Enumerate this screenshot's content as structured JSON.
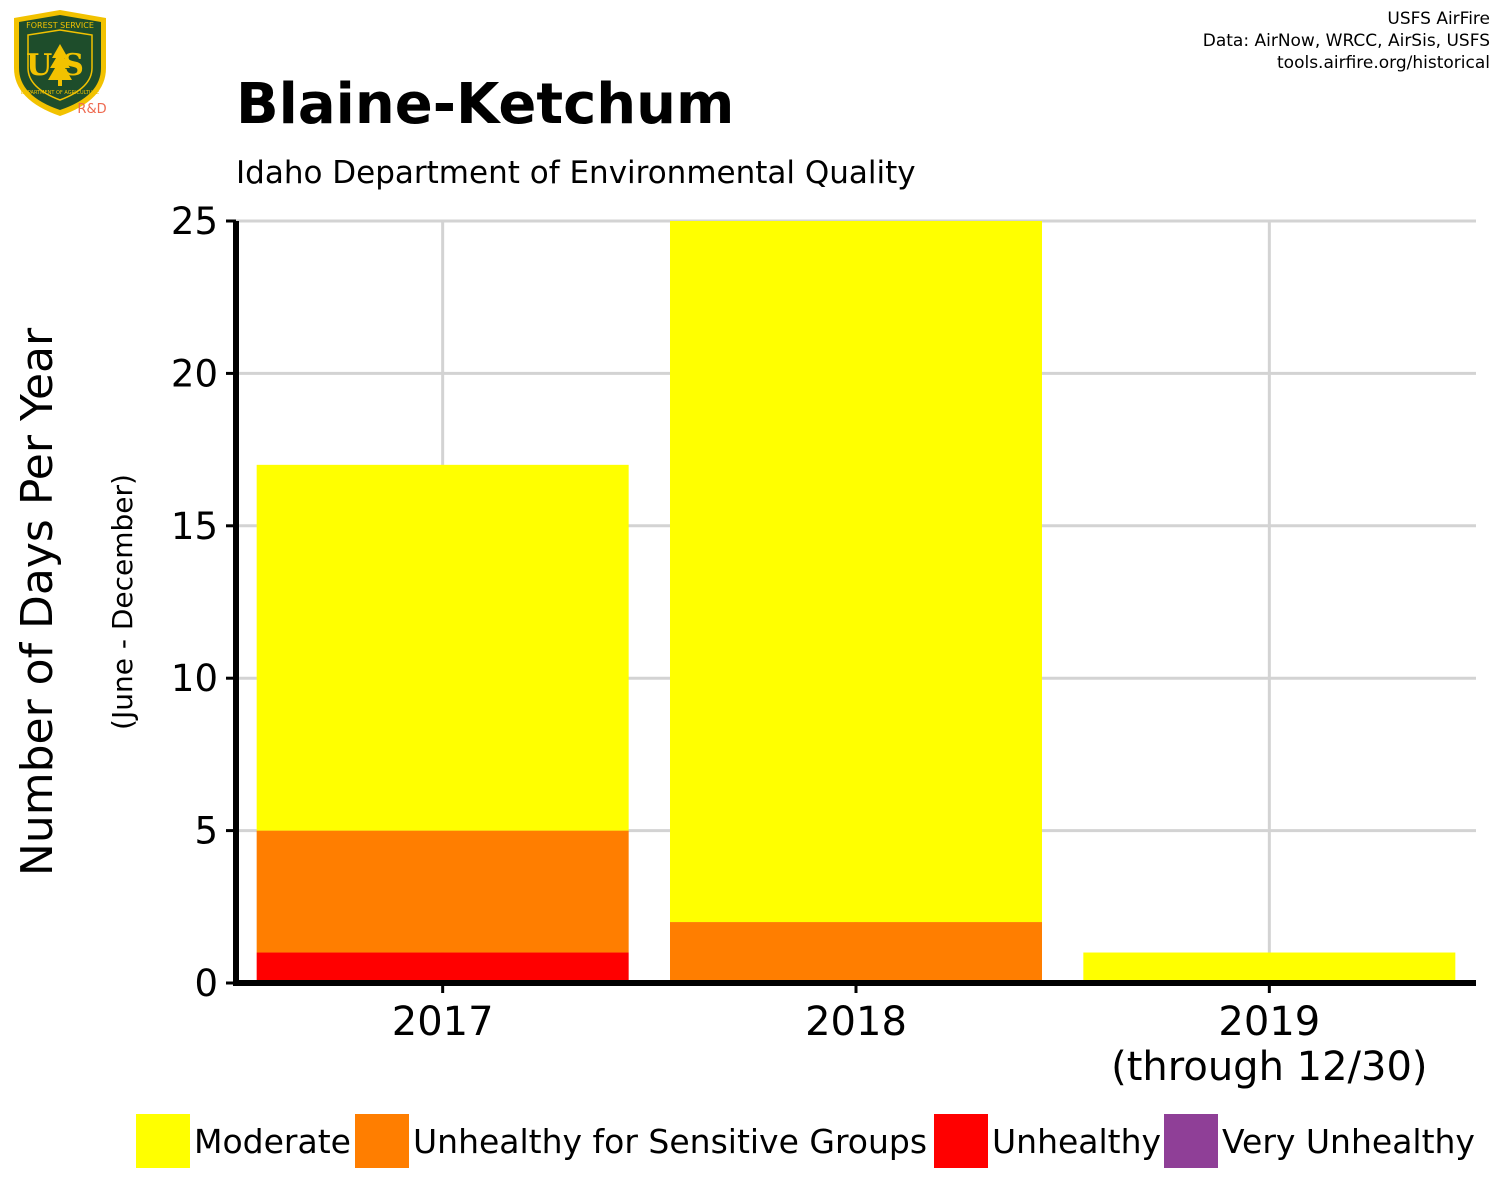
{
  "header": {
    "credits": [
      "USFS AirFire",
      "Data: AirNow, WRCC, AirSis, USFS",
      "tools.airfire.org/historical"
    ],
    "logo_text": "US",
    "logo_ring_top": "FOREST SERVICE",
    "logo_ring_bottom": "DEPARTMENT OF AGRICULTURE",
    "logo_sub": "R&D"
  },
  "chart_data": {
    "type": "bar",
    "stacked": true,
    "title": "Blaine-Ketchum",
    "subtitle": "Idaho Department of Environmental Quality",
    "ylabel": "Number of Days Per Year",
    "ylabel_sub": "(June - December)",
    "xlabel": "",
    "categories": [
      "2017",
      "2018",
      "2019"
    ],
    "category_sublabels": [
      "",
      "",
      "(through 12/30)"
    ],
    "ylim": [
      0,
      25
    ],
    "yticks": [
      0,
      5,
      10,
      15,
      20,
      25
    ],
    "grid": true,
    "legend_position": "bottom",
    "series": [
      {
        "name": "Unhealthy",
        "color": "#ff0000",
        "values": [
          1,
          0,
          0
        ]
      },
      {
        "name": "Unhealthy for Sensitive Groups",
        "color": "#ff7e00",
        "values": [
          4,
          2,
          0
        ]
      },
      {
        "name": "Moderate",
        "color": "#ffff00",
        "values": [
          12,
          23,
          1
        ]
      },
      {
        "name": "Very Unhealthy",
        "color": "#8f3f97",
        "values": [
          0,
          0,
          0
        ]
      }
    ],
    "legend_order": [
      "Moderate",
      "Unhealthy for Sensitive Groups",
      "Unhealthy",
      "Very Unhealthy"
    ]
  }
}
